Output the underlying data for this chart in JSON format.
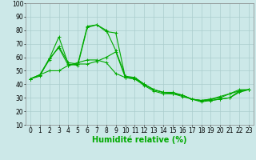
{
  "xlabel": "Humidité relative (%)",
  "background_color": "#cce8e8",
  "grid_color": "#aacccc",
  "line_color": "#00aa00",
  "xlim": [
    -0.5,
    23.5
  ],
  "ylim": [
    10,
    100
  ],
  "xticks": [
    0,
    1,
    2,
    3,
    4,
    5,
    6,
    7,
    8,
    9,
    10,
    11,
    12,
    13,
    14,
    15,
    16,
    17,
    18,
    19,
    20,
    21,
    22,
    23
  ],
  "yticks": [
    10,
    20,
    30,
    40,
    50,
    60,
    70,
    80,
    90,
    100
  ],
  "lines": [
    [
      44,
      46,
      59,
      67,
      54,
      55,
      83,
      84,
      79,
      78,
      45,
      44,
      39,
      35,
      33,
      33,
      31,
      29,
      28,
      29,
      30,
      33,
      36,
      36
    ],
    [
      44,
      47,
      59,
      75,
      55,
      54,
      82,
      84,
      80,
      65,
      46,
      45,
      40,
      36,
      34,
      34,
      32,
      29,
      28,
      29,
      31,
      33,
      35,
      36
    ],
    [
      44,
      47,
      58,
      68,
      56,
      55,
      55,
      57,
      60,
      64,
      45,
      45,
      40,
      36,
      34,
      33,
      32,
      29,
      27,
      28,
      29,
      30,
      35,
      36
    ],
    [
      44,
      47,
      50,
      50,
      54,
      56,
      58,
      58,
      56,
      48,
      45,
      44,
      40,
      36,
      34,
      33,
      32,
      29,
      28,
      28,
      29,
      30,
      34,
      36
    ]
  ],
  "marker": "+",
  "markersize": 3,
  "linewidth": 0.8,
  "xlabel_fontsize": 7,
  "tick_fontsize": 5.5
}
